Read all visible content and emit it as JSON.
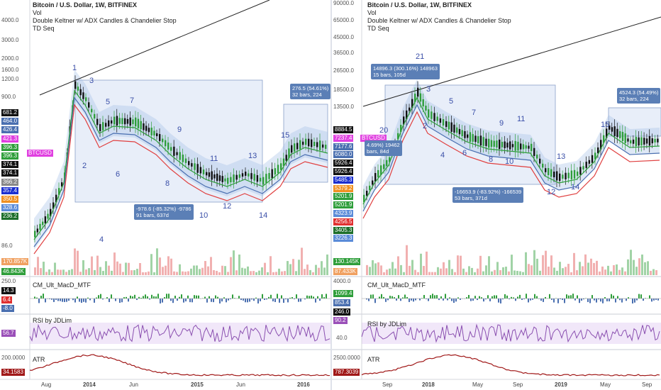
{
  "left": {
    "title": "Bitcoin / U.S. Dollar, 1W, BITFINEX",
    "legend_lines": [
      "Vol",
      "Double Keltner w/ ADX Candles & Chandelier Stop",
      "TD Seq"
    ],
    "price_axis_ticks": [
      "4000.0",
      "3000.0",
      "2000.0",
      "1600.0",
      "1200.0",
      "900.0",
      "86.0"
    ],
    "price_tags": [
      {
        "text": "681.2",
        "color": "#111111"
      },
      {
        "text": "464.0",
        "color": "#4a6fb0"
      },
      {
        "text": "426.4",
        "color": "#4a6fb0"
      },
      {
        "text": "421.3",
        "color": "#e040e0"
      },
      {
        "text": "396.3",
        "color": "#2e9e3a"
      },
      {
        "text": "396.3",
        "color": "#2e9e3a"
      },
      {
        "text": "374.1",
        "color": "#111111"
      },
      {
        "text": "374.1",
        "color": "#111111"
      },
      {
        "text": "366.2",
        "color": "#888888"
      },
      {
        "text": "357.4",
        "color": "#1a2fd0"
      },
      {
        "text": "350.5",
        "color": "#f09020"
      },
      {
        "text": "328.6",
        "color": "#5a8bd8"
      },
      {
        "text": "236.2",
        "color": "#1c6e2a"
      }
    ],
    "pair_label": "BTCUSD",
    "vol_tags": [
      {
        "text": "170.857K",
        "color": "#f0a060"
      },
      {
        "text": "46.843K",
        "color": "#2e9e3a"
      }
    ],
    "macd_label": "CM_Ult_MacD_MTF",
    "macd_ticks": [
      "250.0"
    ],
    "macd_tags": [
      {
        "text": "14.3",
        "color": "#111111"
      },
      {
        "text": "6.4",
        "color": "#e03030"
      },
      {
        "text": "-8.0",
        "color": "#4a6fb0"
      }
    ],
    "rsi_label": "RSI by JDLim",
    "rsi_tag": "56.7",
    "atr_label": "ATR",
    "atr_ticks": [
      "200.0000"
    ],
    "atr_tag": "34.1583",
    "waves": [
      "1",
      "2",
      "3",
      "4",
      "5",
      "6",
      "7",
      "8",
      "9",
      "10",
      "11",
      "12",
      "13",
      "14",
      "15"
    ],
    "info_boxes": [
      {
        "lines": [
          "-978.6 (-85.32%) -9786",
          "91 bars, 637d"
        ]
      },
      {
        "lines": [
          "276.5 (54.61%)",
          "32 bars, 224"
        ]
      }
    ],
    "x_labels": [
      "Aug",
      "2014",
      "Jun",
      "2015",
      "Jun",
      "2016"
    ]
  },
  "right": {
    "title": "Bitcoin / U.S. Dollar, 1W, BITFINEX",
    "legend_lines": [
      "Vol",
      "Double Keltner w/ ADX Candles & Chandelier Stop",
      "TD Seq"
    ],
    "price_axis_ticks": [
      "90000.0",
      "65000.0",
      "45000.0",
      "36500.0",
      "26500.0",
      "18500.0",
      "13500.0"
    ],
    "price_tags": [
      {
        "text": "8884.5",
        "color": "#111111"
      },
      {
        "text": "7237.4",
        "color": "#e040e0"
      },
      {
        "text": "7177.6",
        "color": "#4a6fb0"
      },
      {
        "text": "6080.0",
        "color": "#4a6fb0"
      },
      {
        "text": "5926.4",
        "color": "#111111"
      },
      {
        "text": "5926.4",
        "color": "#111111"
      },
      {
        "text": "5485.3",
        "color": "#1a2fd0"
      },
      {
        "text": "5379.2",
        "color": "#f09020"
      },
      {
        "text": "5201.9",
        "color": "#2e9e3a"
      },
      {
        "text": "5201.9",
        "color": "#2e9e3a"
      },
      {
        "text": "4323.9",
        "color": "#5a8bd8"
      },
      {
        "text": "4256.5",
        "color": "#e03030"
      },
      {
        "text": "3405.3",
        "color": "#1c6e2a"
      },
      {
        "text": "3226.3",
        "color": "#5a8bd8"
      }
    ],
    "pair_label": "BTCUSD",
    "vol_tags": [
      {
        "text": "130.145K",
        "color": "#2e9e3a"
      },
      {
        "text": "87.433K",
        "color": "#f0a060"
      }
    ],
    "macd_label": "CM_Ult_MacD_MTF",
    "macd_ticks": [
      "4000.0"
    ],
    "macd_tags": [
      {
        "text": "1099.4",
        "color": "#2e9e3a"
      },
      {
        "text": "853.4",
        "color": "#4a6fb0"
      },
      {
        "text": "246.0",
        "color": "#111111"
      }
    ],
    "rsi_label": "RSI by JDLim",
    "rsi_tag": "90.2",
    "rsi_ticks": [
      "40.0"
    ],
    "atr_label": "ATR",
    "atr_ticks": [
      "2500.0000"
    ],
    "atr_tag": "787.3039",
    "waves": [
      "21",
      "3",
      "5",
      "7",
      "9",
      "11",
      "20",
      "2",
      "4",
      "6",
      "8",
      "10",
      "13",
      "12",
      "14",
      "15"
    ],
    "info_boxes": [
      {
        "lines": [
          "14896.3 (300.16%) 148963",
          "15 bars, 105d"
        ]
      },
      {
        "lines": [
          "-16653.9 (-83.92%) -166539",
          "53 bars, 371d"
        ]
      },
      {
        "lines": [
          "4.69%) 19462",
          "bars, 84d"
        ]
      },
      {
        "lines": [
          "4524.3 (54.49%)",
          "32 bars, 224"
        ]
      }
    ],
    "x_labels": [
      "Sep",
      "2018",
      "May",
      "Sep",
      "2019",
      "May",
      "Sep"
    ]
  }
}
